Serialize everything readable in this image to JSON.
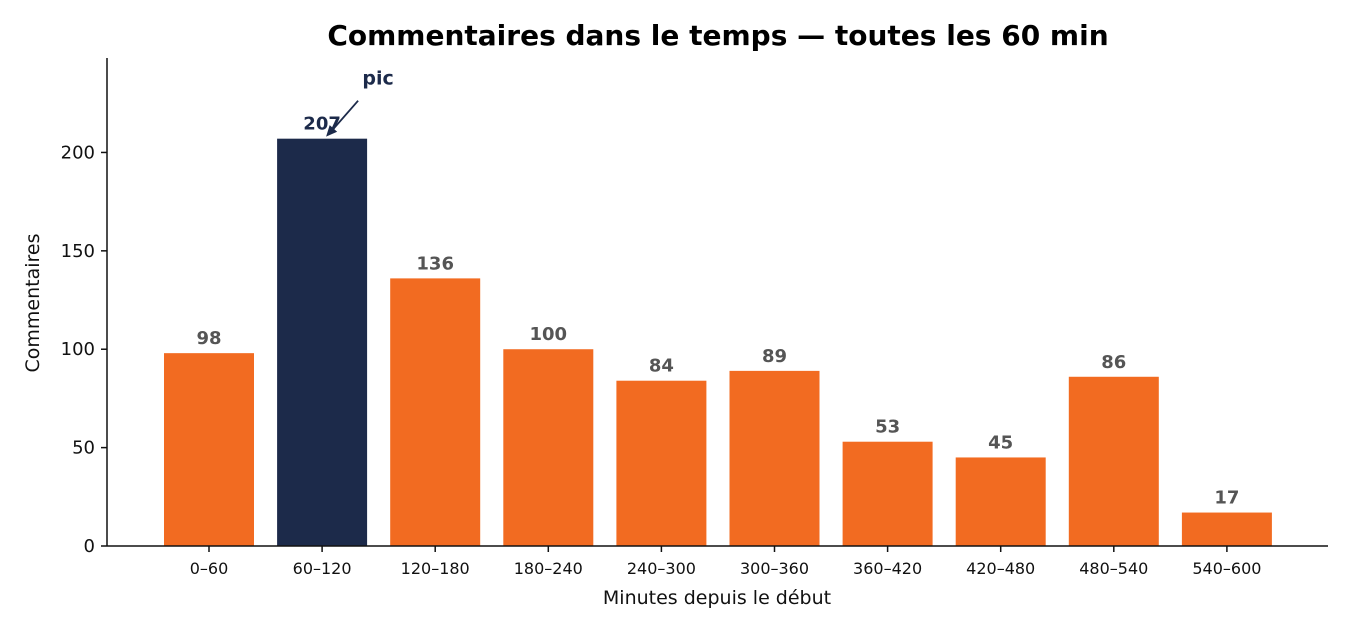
{
  "chart_data": {
    "type": "bar",
    "title": "Commentaires dans le temps — toutes les 60 min",
    "xlabel": "Minutes depuis le début",
    "ylabel": "Commentaires",
    "categories": [
      "0–60",
      "60–120",
      "120–180",
      "180–240",
      "240–300",
      "300–360",
      "360–420",
      "420–480",
      "480–540",
      "540–600"
    ],
    "values": [
      98,
      207,
      136,
      100,
      84,
      89,
      53,
      45,
      86,
      17
    ],
    "ylim": [
      0,
      248
    ],
    "yticks": [
      0,
      50,
      100,
      150,
      200
    ],
    "grid": false,
    "colors": {
      "bar": "#f26b21",
      "highlight": "#1c2a4a"
    },
    "highlight_index": 1,
    "annotation": {
      "text": "pic",
      "target_index": 1
    }
  }
}
